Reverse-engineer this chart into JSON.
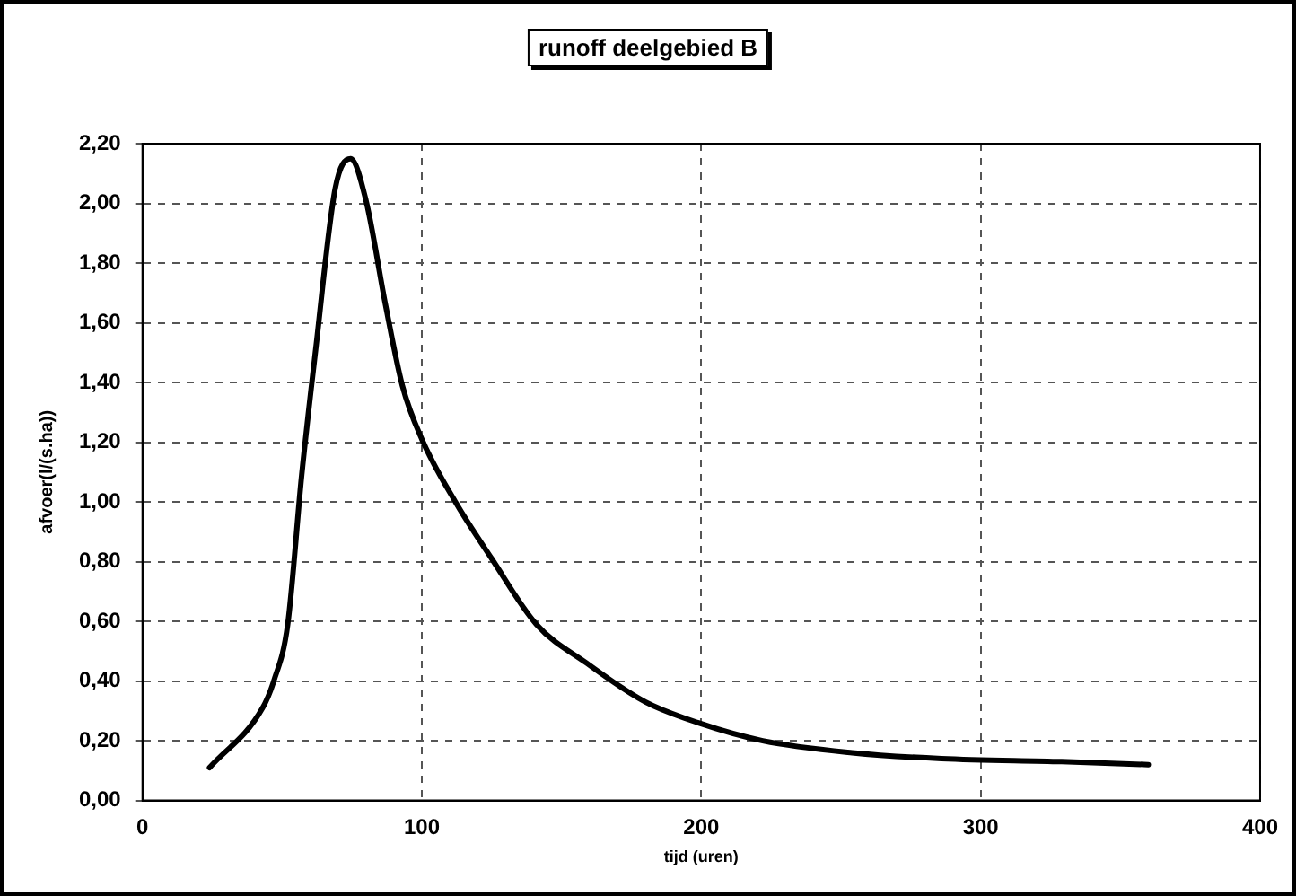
{
  "chart_data": {
    "type": "line",
    "title": "runoff deelgebied B",
    "xlabel": "tijd (uren)",
    "ylabel": "afvoer(l/(s.ha))",
    "x": [
      24,
      43,
      47,
      52,
      57,
      62,
      69,
      74.5,
      80,
      87,
      93,
      100,
      112,
      125,
      141,
      159,
      180,
      199,
      222,
      254,
      286,
      329,
      360
    ],
    "series": [
      {
        "color": "#000000",
        "values": [
          0.11,
          0.31,
          0.4,
          0.59,
          1.09,
          1.51,
          2.05,
          2.15,
          2.01,
          1.66,
          1.39,
          1.21,
          1.0,
          0.81,
          0.59,
          0.46,
          0.33,
          0.26,
          0.2,
          0.16,
          0.14,
          0.13,
          0.12
        ]
      }
    ],
    "xlim": [
      0,
      400
    ],
    "xticks": [
      0,
      100,
      200,
      300,
      400
    ],
    "ylim": [
      0,
      2.2
    ],
    "yticks": [
      {
        "value": 0,
        "label": "0,00"
      },
      {
        "value": 0.2,
        "label": "0,20"
      },
      {
        "value": 0.4,
        "label": "0,40"
      },
      {
        "value": 0.6,
        "label": "0,60"
      },
      {
        "value": 0.8,
        "label": "0,80"
      },
      {
        "value": 1.0,
        "label": "1,00"
      },
      {
        "value": 1.2,
        "label": "1,20"
      },
      {
        "value": 1.4,
        "label": "1,40"
      },
      {
        "value": 1.6,
        "label": "1,60"
      },
      {
        "value": 1.8,
        "label": "1,80"
      },
      {
        "value": 2.0,
        "label": "2,00"
      },
      {
        "value": 2.2,
        "label": "2,20"
      }
    ],
    "grid": true,
    "legend": false,
    "marker": "none",
    "line_style": "solid"
  }
}
